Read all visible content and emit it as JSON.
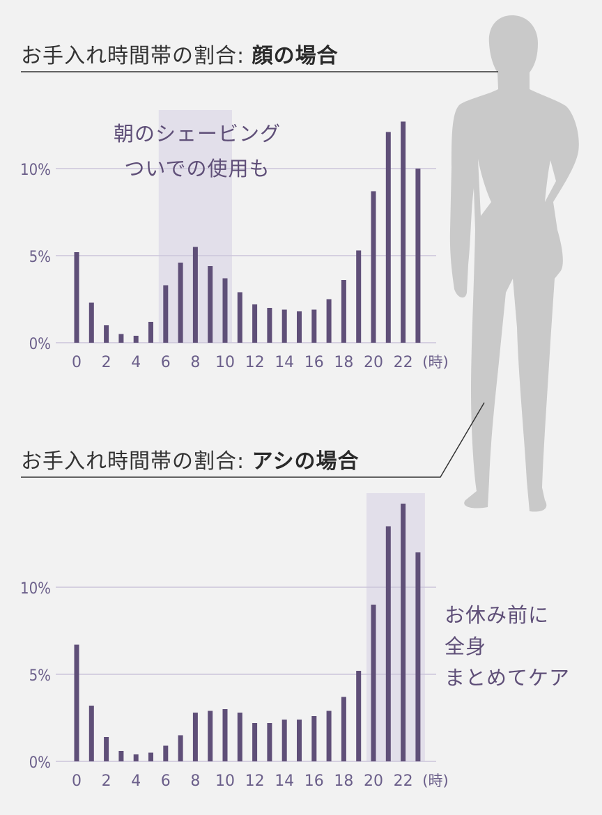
{
  "colors": {
    "bar": "#5f4f78",
    "grid": "#cbc5da",
    "highlight": "#e2dfea",
    "label": "#6b5f8a",
    "silhouette": "#c9c9c9",
    "title": "#333333"
  },
  "chart_data": [
    {
      "type": "bar",
      "title_prefix": "お手入れ時間帯の割合: ",
      "title_emph": "顔の場合",
      "categories": [
        0,
        1,
        2,
        3,
        4,
        5,
        6,
        7,
        8,
        9,
        10,
        11,
        12,
        13,
        14,
        15,
        16,
        17,
        18,
        19,
        20,
        21,
        22,
        23
      ],
      "values": [
        5.2,
        2.3,
        1.0,
        0.5,
        0.4,
        1.2,
        3.3,
        4.6,
        5.5,
        4.4,
        3.7,
        2.9,
        2.2,
        2.0,
        1.9,
        1.8,
        1.9,
        2.5,
        3.6,
        5.3,
        8.7,
        12.1,
        12.7,
        10.0
      ],
      "x_tick_labels": [
        "0",
        "2",
        "4",
        "6",
        "8",
        "10",
        "12",
        "14",
        "16",
        "18",
        "20",
        "22"
      ],
      "x_unit": "(時)",
      "y_ticks": [
        0,
        5,
        10
      ],
      "y_tick_labels": [
        "0%",
        "5%",
        "10%"
      ],
      "ylim": [
        0,
        13.4
      ],
      "grid": true,
      "highlight_range": [
        6,
        10
      ],
      "annotation": [
        "朝のシェービング",
        "ついでの使用も"
      ]
    },
    {
      "type": "bar",
      "title_prefix": "お手入れ時間帯の割合: ",
      "title_emph": "アシの場合",
      "categories": [
        0,
        1,
        2,
        3,
        4,
        5,
        6,
        7,
        8,
        9,
        10,
        11,
        12,
        13,
        14,
        15,
        16,
        17,
        18,
        19,
        20,
        21,
        22,
        23
      ],
      "values": [
        6.7,
        3.2,
        1.4,
        0.6,
        0.4,
        0.5,
        0.9,
        1.5,
        2.8,
        2.9,
        3.0,
        2.8,
        2.2,
        2.2,
        2.4,
        2.4,
        2.6,
        2.9,
        3.7,
        5.2,
        9.0,
        13.5,
        14.8,
        12.0
      ],
      "x_tick_labels": [
        "0",
        "2",
        "4",
        "6",
        "8",
        "10",
        "12",
        "14",
        "16",
        "18",
        "20",
        "22"
      ],
      "x_unit": "(時)",
      "y_ticks": [
        0,
        5,
        10
      ],
      "y_tick_labels": [
        "0%",
        "5%",
        "10%"
      ],
      "ylim": [
        0,
        15.4
      ],
      "grid": true,
      "highlight_range": [
        20,
        23
      ],
      "annotation": [
        "お休み前に",
        "全身",
        "まとめてケア"
      ]
    }
  ]
}
